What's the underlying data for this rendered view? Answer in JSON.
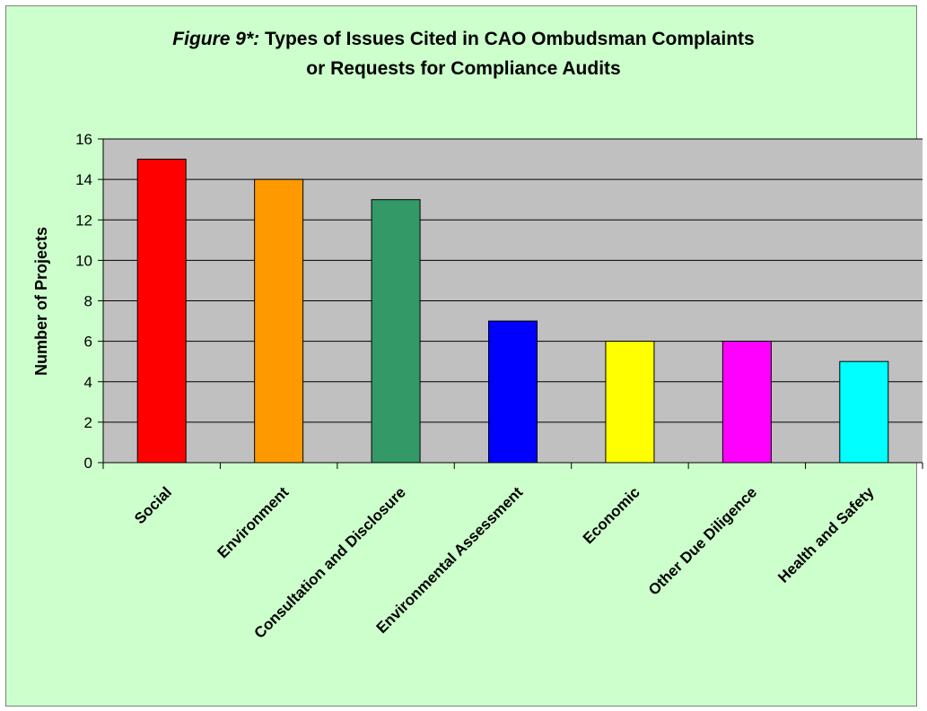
{
  "chart_data": {
    "type": "bar",
    "title_label": "Figure 9*:",
    "title_line1": "Types of Issues Cited in CAO Ombudsman Complaints",
    "title_line2": "or Requests for Compliance Audits",
    "xlabel": "",
    "ylabel": "Number of Projects",
    "ylim": [
      0,
      16
    ],
    "yticks": [
      0,
      2,
      4,
      6,
      8,
      10,
      12,
      14,
      16
    ],
    "grid": true,
    "legend": "none",
    "categories": [
      "Social",
      "Environment",
      "Consultation and Disclosure",
      "Environmental Assessment",
      "Economic",
      "Other Due Diligence",
      "Health and Safety"
    ],
    "values": [
      15,
      14,
      13,
      7,
      6,
      6,
      5
    ],
    "colors": [
      "#ff0000",
      "#ff9900",
      "#339966",
      "#0000ff",
      "#ffff00",
      "#ff00ff",
      "#00ffff"
    ],
    "plot_background": "#c0c0c0",
    "panel_background": "#ccffcc"
  }
}
